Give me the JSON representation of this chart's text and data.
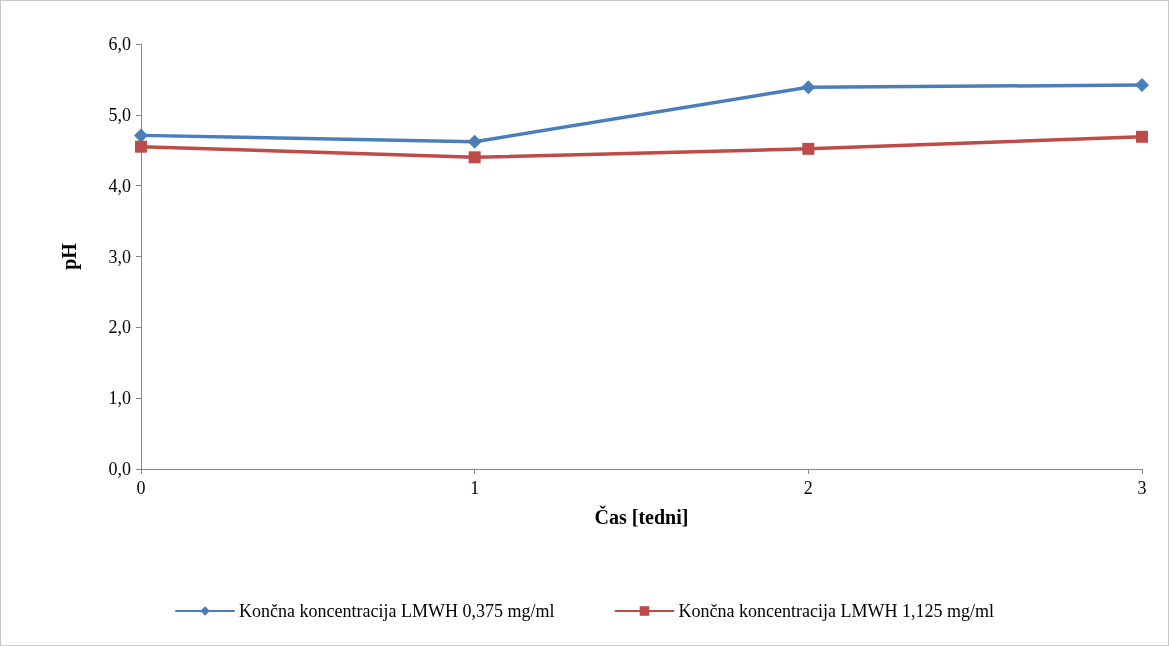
{
  "chart_data": {
    "type": "line",
    "xlabel": "Čas [tedni]",
    "ylabel": "pH",
    "x": [
      0,
      1,
      2,
      3
    ],
    "series": [
      {
        "name": "Končna koncentracija LMWH 0,375 mg/ml",
        "color": "#4a7ebb",
        "marker": "diamond",
        "values": [
          4.71,
          4.62,
          5.39,
          5.42
        ]
      },
      {
        "name": "Končna koncentracija LMWH 1,125 mg/ml",
        "color": "#be4b48",
        "marker": "square",
        "values": [
          4.55,
          4.4,
          4.52,
          4.69
        ]
      }
    ],
    "xlim": [
      0,
      3
    ],
    "xticks": [
      0,
      1,
      2,
      3
    ],
    "ylim": [
      0,
      6
    ],
    "yticks": [
      {
        "value": 0,
        "label": "0,0"
      },
      {
        "value": 1,
        "label": "1,0"
      },
      {
        "value": 2,
        "label": "2,0"
      },
      {
        "value": 3,
        "label": "3,0"
      },
      {
        "value": 4,
        "label": "4,0"
      },
      {
        "value": 5,
        "label": "5,0"
      },
      {
        "value": 6,
        "label": "6,0"
      }
    ],
    "grid": false,
    "legend": "bottom",
    "line_style": "solid"
  }
}
